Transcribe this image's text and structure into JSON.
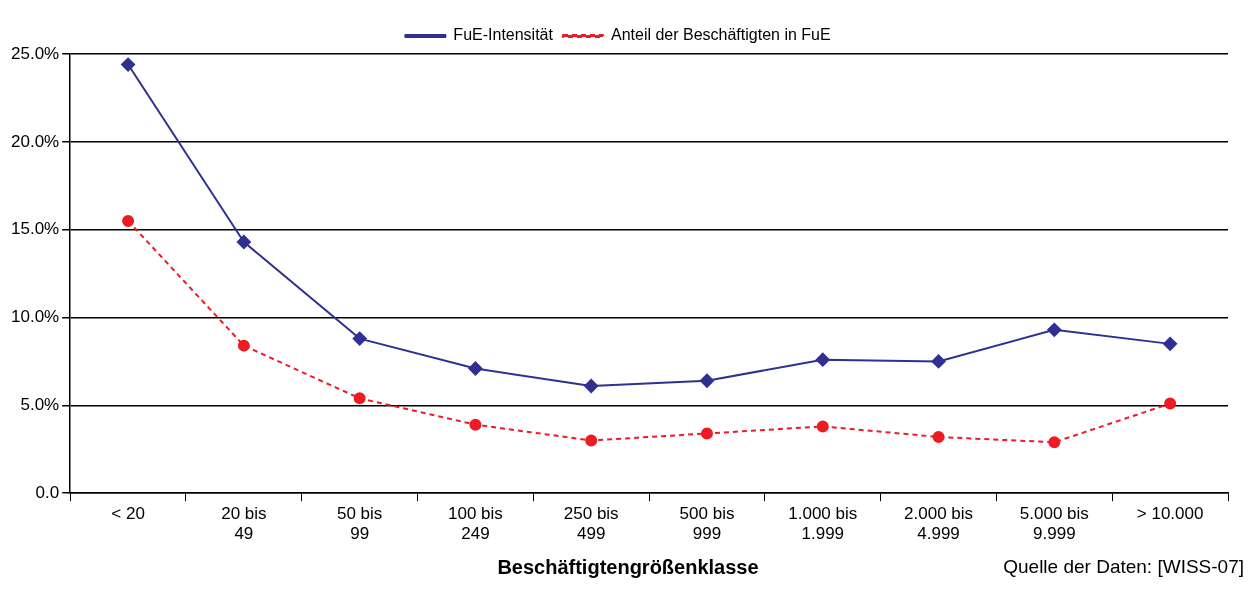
{
  "chart_data": {
    "type": "line",
    "xlabel": "Beschäftigtengrößenklasse",
    "annotations": [
      "Quelle der Daten: [WISS-07]"
    ],
    "categories": [
      "< 20",
      "20 bis\n49",
      "50 bis\n99",
      "100 bis\n249",
      "250 bis\n499",
      "500 bis\n999",
      "1.000 bis\n1.999",
      "2.000 bis\n4.999",
      "5.000 bis\n9.999",
      "> 10.000"
    ],
    "series": [
      {
        "name": "FuE-Intensität",
        "color": "#2e3192",
        "marker": "diamond",
        "line_style": "solid",
        "values": [
          24.4,
          14.3,
          8.8,
          7.1,
          6.1,
          6.4,
          7.6,
          7.5,
          9.3,
          8.5
        ]
      },
      {
        "name": "Anteil der Beschäftigten in FuE",
        "color": "#ed1c24",
        "marker": "circle",
        "line_style": "dashed",
        "values": [
          15.5,
          8.4,
          5.4,
          3.9,
          3.0,
          3.4,
          3.8,
          3.2,
          2.9,
          5.1
        ]
      }
    ],
    "ylim": [
      0,
      25
    ],
    "yticks": [
      {
        "value": 0,
        "label": "0.0"
      },
      {
        "value": 5,
        "label": "5.0%"
      },
      {
        "value": 10,
        "label": "10.0%"
      },
      {
        "value": 15,
        "label": "15.0%"
      },
      {
        "value": 20,
        "label": "20.0%"
      },
      {
        "value": 25,
        "label": "25.0%"
      }
    ],
    "grid": "y",
    "legend": "top"
  }
}
